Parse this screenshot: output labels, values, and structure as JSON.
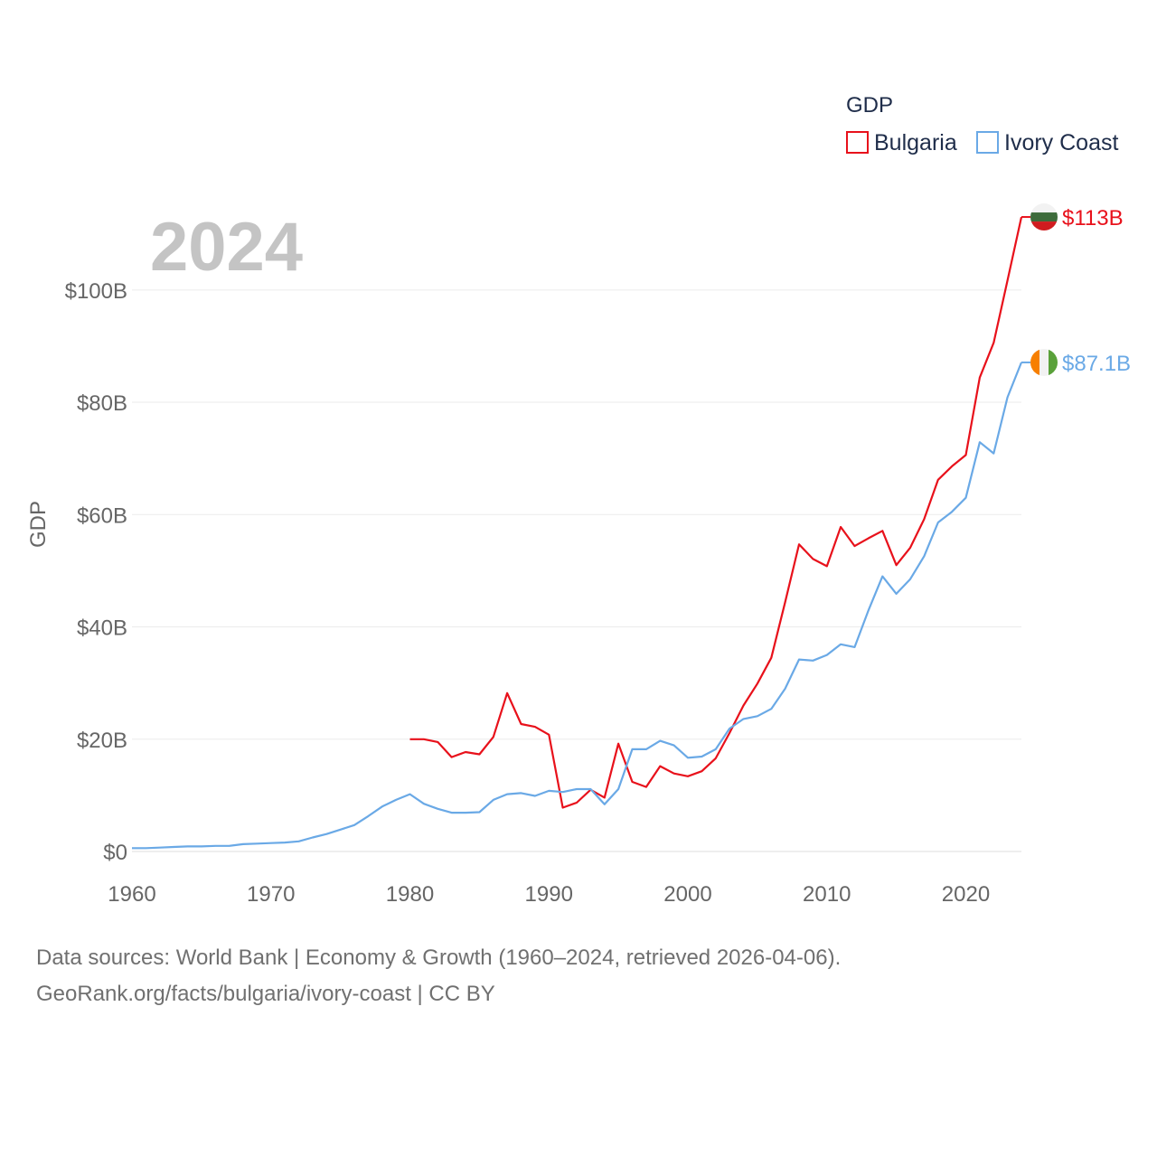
{
  "chart_data": {
    "type": "line",
    "ylabel": "GDP",
    "year_label": "2024",
    "legend": {
      "title": "GDP",
      "placement": "top-right"
    },
    "xlim": [
      1960,
      2024
    ],
    "ylim": [
      0,
      118
    ],
    "unit": "billion USD",
    "x_ticks": [
      1960,
      1970,
      1980,
      1990,
      2000,
      2010,
      2020
    ],
    "x_tick_labels": [
      "1960",
      "1970",
      "1980",
      "1990",
      "2000",
      "2010",
      "2020"
    ],
    "y_ticks": [
      0,
      20,
      40,
      60,
      80,
      100
    ],
    "y_tick_labels": [
      "$0",
      "$20B",
      "$40B",
      "$60B",
      "$80B",
      "$100B"
    ],
    "grid": true,
    "series": [
      {
        "name": "Bulgaria",
        "color": "#e8111b",
        "flag": "bulgaria-flag",
        "end_label": "$113B",
        "x": [
          1980,
          1981,
          1982,
          1983,
          1984,
          1985,
          1986,
          1987,
          1988,
          1989,
          1990,
          1991,
          1992,
          1993,
          1994,
          1995,
          1996,
          1997,
          1998,
          1999,
          2000,
          2001,
          2002,
          2003,
          2004,
          2005,
          2006,
          2007,
          2008,
          2009,
          2010,
          2011,
          2012,
          2013,
          2014,
          2015,
          2016,
          2017,
          2018,
          2019,
          2020,
          2021,
          2022,
          2023,
          2024
        ],
        "values": [
          20.0,
          20.0,
          19.5,
          16.8,
          17.7,
          17.3,
          20.4,
          28.2,
          22.7,
          22.2,
          20.8,
          7.8,
          8.7,
          11.0,
          9.6,
          19.2,
          12.4,
          11.5,
          15.2,
          13.9,
          13.4,
          14.3,
          16.6,
          21.1,
          26.0,
          29.9,
          34.5,
          44.4,
          54.7,
          52.1,
          50.8,
          57.8,
          54.4,
          55.8,
          57.1,
          51.0,
          54.1,
          59.2,
          66.2,
          68.6,
          70.6,
          84.4,
          90.6,
          101.7,
          113.0
        ]
      },
      {
        "name": "Ivory Coast",
        "color": "#6aa9e6",
        "flag": "ivory-coast-flag",
        "end_label": "$87.1B",
        "x": [
          1960,
          1961,
          1962,
          1963,
          1964,
          1965,
          1966,
          1967,
          1968,
          1969,
          1970,
          1971,
          1972,
          1973,
          1974,
          1975,
          1976,
          1977,
          1978,
          1979,
          1980,
          1981,
          1982,
          1983,
          1984,
          1985,
          1986,
          1987,
          1988,
          1989,
          1990,
          1991,
          1992,
          1993,
          1994,
          1995,
          1996,
          1997,
          1998,
          1999,
          2000,
          2001,
          2002,
          2003,
          2004,
          2005,
          2006,
          2007,
          2008,
          2009,
          2010,
          2011,
          2012,
          2013,
          2014,
          2015,
          2016,
          2017,
          2018,
          2019,
          2020,
          2021,
          2022,
          2023,
          2024
        ],
        "values": [
          0.6,
          0.6,
          0.7,
          0.8,
          0.9,
          0.9,
          1.0,
          1.0,
          1.3,
          1.4,
          1.5,
          1.6,
          1.8,
          2.5,
          3.1,
          3.9,
          4.7,
          6.3,
          8.0,
          9.2,
          10.2,
          8.5,
          7.6,
          6.9,
          6.9,
          7.0,
          9.2,
          10.2,
          10.4,
          9.9,
          10.8,
          10.6,
          11.1,
          11.1,
          8.4,
          11.1,
          18.2,
          18.2,
          19.7,
          18.9,
          16.7,
          16.9,
          18.2,
          21.9,
          23.6,
          24.1,
          25.4,
          29.0,
          34.2,
          34.0,
          35.0,
          36.9,
          36.4,
          43.0,
          49.0,
          45.9,
          48.5,
          52.6,
          58.6,
          60.5,
          63.0,
          72.9,
          70.9,
          80.9,
          87.1
        ]
      }
    ]
  },
  "source": {
    "line1": "Data sources: World Bank | Economy & Growth (1960–2024, retrieved 2026-04-06).",
    "line2": "GeoRank.org/facts/bulgaria/ivory-coast | CC BY"
  }
}
